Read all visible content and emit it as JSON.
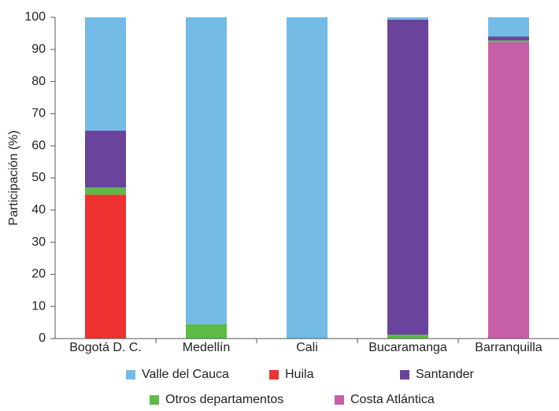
{
  "chart_data": {
    "type": "bar",
    "stacked": true,
    "y_label": "Participación (%)",
    "categories": [
      "Bogotá D. C.",
      "Medellín",
      "Cali",
      "Bucaramanga",
      "Barranquilla"
    ],
    "series": [
      {
        "name": "Valle del Cauca",
        "color": "#74bbe6",
        "values": [
          35.3,
          95.5,
          100,
          0.7,
          6
        ]
      },
      {
        "name": "Huila",
        "color": "#ee3131",
        "values": [
          44.8,
          0,
          0,
          0,
          0
        ]
      },
      {
        "name": "Santander",
        "color": "#6a449c",
        "values": [
          17.7,
          0,
          0,
          98.1,
          1.2
        ]
      },
      {
        "name": "Otros departamentos",
        "color": "#5dbb46",
        "values": [
          2.2,
          4.5,
          0,
          1.2,
          0.5
        ]
      },
      {
        "name": "Costa Atlántica",
        "color": "#c65fa5",
        "values": [
          0,
          0,
          0,
          0,
          92.3
        ]
      }
    ],
    "ylim": [
      0,
      100
    ],
    "yticks": [
      0,
      10,
      20,
      30,
      40,
      50,
      60,
      70,
      80,
      90,
      100
    ],
    "grid": false
  }
}
